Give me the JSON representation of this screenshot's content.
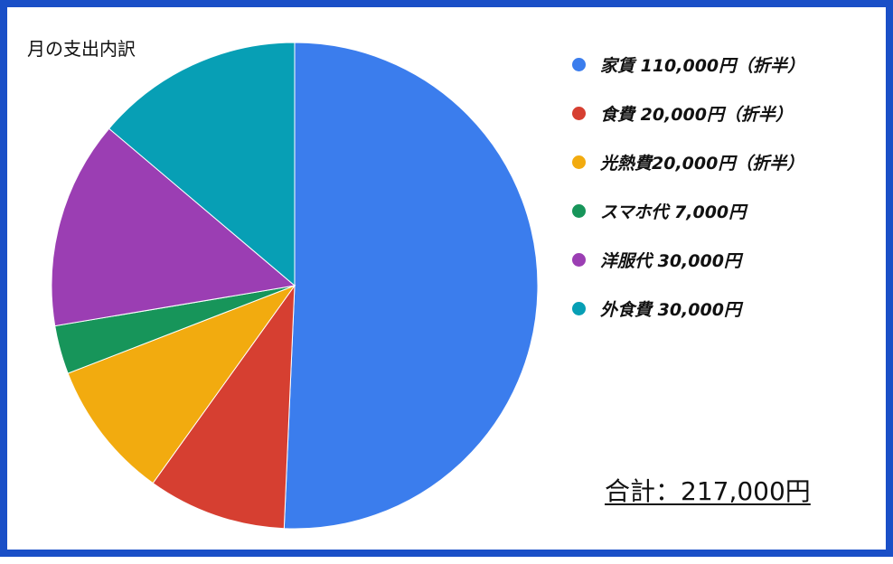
{
  "chart_data": {
    "type": "pie",
    "title": "月の支出内訳",
    "legend_position": "right",
    "slices": [
      {
        "label": "家賃 110,000円（折半）",
        "value": 110000,
        "color": "#3b7ded"
      },
      {
        "label": "食費 20,000円（折半）",
        "value": 20000,
        "color": "#d63f31"
      },
      {
        "label": "光熱費20,000円（折半）",
        "value": 20000,
        "color": "#f2ab0f"
      },
      {
        "label": "スマホ代 7,000円",
        "value": 7000,
        "color": "#17955a"
      },
      {
        "label": "洋服代 30,000円",
        "value": 30000,
        "color": "#9b3eb3"
      },
      {
        "label": "外食費 30,000円",
        "value": 30000,
        "color": "#079fb5"
      }
    ]
  },
  "total_label": "合計：217,000円"
}
